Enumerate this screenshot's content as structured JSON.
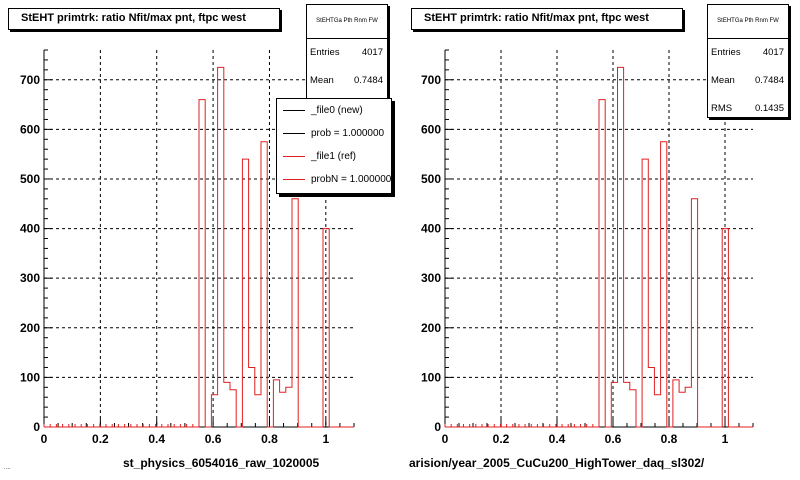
{
  "chart_data": [
    {
      "type": "bar",
      "title": "StEHT primtrk: ratio Nfit/max pnt, ftpc west",
      "xlabel": "st_physics_6054016_raw_1020005",
      "ylabel": "",
      "xlim": [
        0,
        1.1
      ],
      "ylim": [
        0,
        760
      ],
      "xticks": [
        "0",
        "0.2",
        "0.4",
        "0.6",
        "0.8",
        "1"
      ],
      "yticks": [
        "0",
        "100",
        "200",
        "300",
        "400",
        "500",
        "600",
        "700"
      ],
      "grid": true,
      "bin_width": 0.022,
      "x": [
        0.55,
        0.572,
        0.594,
        0.616,
        0.638,
        0.66,
        0.682,
        0.704,
        0.726,
        0.748,
        0.77,
        0.792,
        0.814,
        0.836,
        0.858,
        0.88,
        0.902,
        0.924,
        0.946,
        0.968,
        0.99
      ],
      "series": [
        {
          "name": "_file1 (ref)",
          "color": "#e02020",
          "values": [
            660,
            0,
            65,
            725,
            90,
            75,
            0,
            540,
            120,
            65,
            575,
            0,
            95,
            70,
            80,
            460,
            0,
            0,
            0,
            0,
            400
          ]
        }
      ],
      "stats": {
        "header": "StEHTGa Pth Rnm FW",
        "entries_label": "Entries",
        "entries": "4017",
        "mean_label": "Mean",
        "mean": "0.7484"
      },
      "legend": {
        "placement": "top-right",
        "items": [
          {
            "label": "_file0 (new)",
            "color": "#000000"
          },
          {
            "label": "prob = 1.000000",
            "color": "#000000"
          },
          {
            "label": "_file1 (ref)",
            "color": "#e02020"
          },
          {
            "label": "probN = 1.000000",
            "color": "#e02020"
          }
        ]
      }
    },
    {
      "type": "bar",
      "title": "StEHT primtrk: ratio Nfit/max pnt, ftpc west",
      "xlabel": "arision/year_2005_CuCu200_HighTower_daq_sl302/",
      "ylabel": "",
      "xlim": [
        0,
        1.1
      ],
      "ylim": [
        0,
        760
      ],
      "xticks": [
        "0",
        "0.2",
        "0.4",
        "0.6",
        "0.8",
        "1"
      ],
      "yticks": [
        "0",
        "100",
        "200",
        "300",
        "400",
        "500",
        "600",
        "700"
      ],
      "grid": true,
      "bin_width": 0.022,
      "x": [
        0.55,
        0.572,
        0.594,
        0.616,
        0.638,
        0.66,
        0.682,
        0.704,
        0.726,
        0.748,
        0.77,
        0.792,
        0.814,
        0.836,
        0.858,
        0.88,
        0.902,
        0.924,
        0.946,
        0.968,
        0.99
      ],
      "series": [
        {
          "name": "",
          "color": "#e02020",
          "values": [
            660,
            0,
            90,
            725,
            90,
            75,
            0,
            540,
            120,
            65,
            575,
            0,
            95,
            70,
            80,
            460,
            0,
            0,
            0,
            0,
            400
          ]
        }
      ],
      "stats": {
        "header": "StEHTGa Pth Rnm FW",
        "entries_label": "Entries",
        "entries": "4017",
        "mean_label": "Mean",
        "mean": "0.7484",
        "rms_label": "RMS",
        "rms": "0.1435"
      }
    }
  ],
  "footer": "...."
}
